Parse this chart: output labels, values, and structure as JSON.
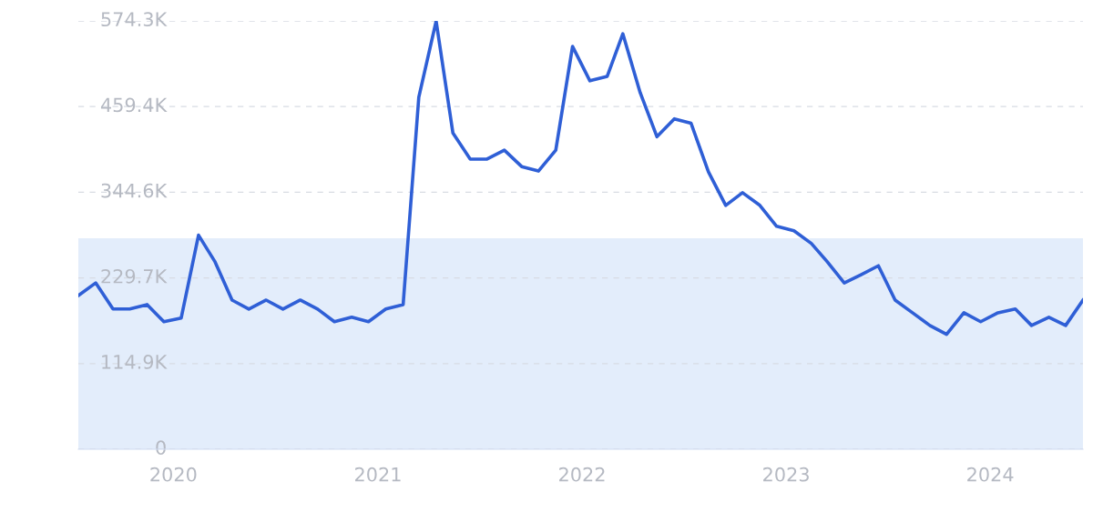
{
  "chart_data": {
    "type": "line",
    "x": [
      "2019-07-15",
      "2019-08-15",
      "2019-09-15",
      "2019-10-15",
      "2019-11-15",
      "2019-12-15",
      "2020-01-15",
      "2020-02-15",
      "2020-03-15",
      "2020-04-15",
      "2020-05-15",
      "2020-06-15",
      "2020-07-15",
      "2020-08-15",
      "2020-09-15",
      "2020-10-15",
      "2020-11-15",
      "2020-12-15",
      "2021-01-15",
      "2021-02-15",
      "2021-03-15",
      "2021-04-15",
      "2021-05-15",
      "2021-06-15",
      "2021-07-15",
      "2021-08-15",
      "2021-09-15",
      "2021-10-15",
      "2021-11-15",
      "2021-12-15",
      "2022-01-15",
      "2022-02-15",
      "2022-03-15",
      "2022-04-15",
      "2022-05-15",
      "2022-06-15",
      "2022-07-15",
      "2022-08-15",
      "2022-09-15",
      "2022-10-15",
      "2022-11-15",
      "2022-12-15",
      "2023-01-15",
      "2023-02-15",
      "2023-03-15",
      "2023-04-15",
      "2023-05-15",
      "2023-06-15",
      "2023-07-15",
      "2023-08-15",
      "2023-09-15",
      "2023-10-15",
      "2023-11-15",
      "2023-12-15",
      "2024-01-15",
      "2024-02-15",
      "2024-03-15",
      "2024-04-15",
      "2024-05-15",
      "2024-06-15"
    ],
    "series": [
      {
        "color": "#2f5fd6",
        "values": [
          206,
          223,
          188,
          188,
          194,
          171,
          176,
          287,
          252,
          200,
          188,
          200,
          188,
          200,
          188,
          171,
          177,
          171,
          188,
          194,
          472,
          574,
          424,
          389,
          389,
          401,
          379,
          373,
          401,
          540,
          494,
          500,
          557,
          478,
          419,
          443,
          437,
          372,
          327,
          344,
          327,
          299,
          293,
          276,
          252,
          223,
          234,
          246,
          200,
          183,
          166,
          154,
          183,
          171,
          183,
          188,
          166,
          177,
          166,
          200
        ]
      }
    ],
    "xlim": [
      "2019-07-15",
      "2024-06-15"
    ],
    "xticks": [
      {
        "value": "2020-01-01",
        "label": "2020"
      },
      {
        "value": "2021-01-01",
        "label": "2021"
      },
      {
        "value": "2022-01-01",
        "label": "2022"
      },
      {
        "value": "2023-01-01",
        "label": "2023"
      },
      {
        "value": "2024-01-01",
        "label": "2024"
      }
    ],
    "ylim": [
      0,
      574.3
    ],
    "yticks": [
      0,
      {
        "value": 114.9,
        "label": "114.9K"
      },
      {
        "value": 229.7,
        "label": "229.7K"
      },
      {
        "value": 344.6,
        "label": "344.6K"
      },
      {
        "value": 459.4,
        "label": "459.4K"
      },
      {
        "value": 574.3,
        "label": "574.3K"
      }
    ],
    "bands": [
      {
        "axis": "y",
        "from": 0,
        "to": 283,
        "color": "#e3edfb"
      }
    ],
    "grid": "y",
    "legend": false,
    "line_style": "solid",
    "marker": "none"
  }
}
